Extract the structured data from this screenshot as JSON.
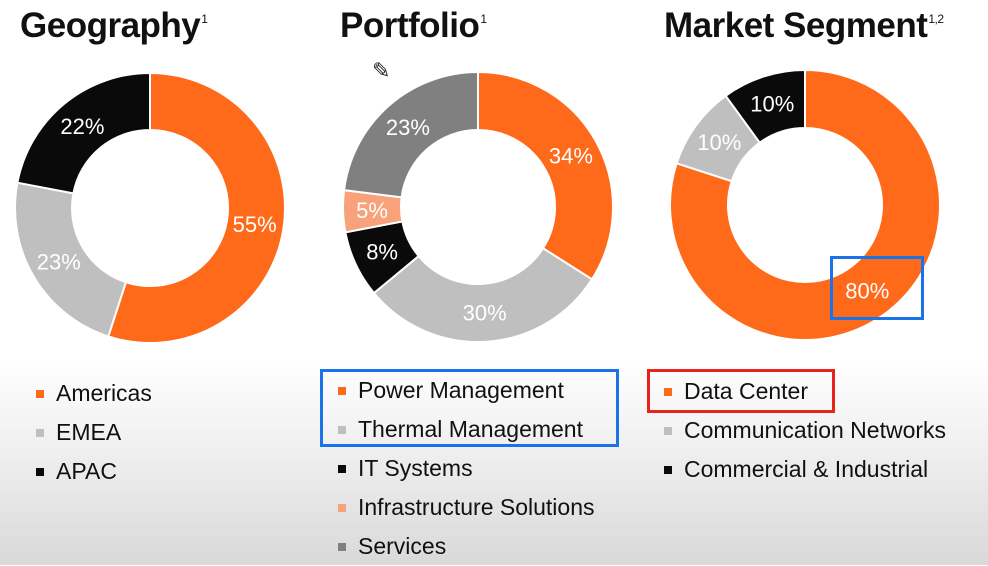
{
  "chart_data": [
    {
      "type": "pie",
      "title": "Geography",
      "title_sup": "1",
      "categories": [
        "Americas",
        "EMEA",
        "APAC"
      ],
      "values": [
        55,
        23,
        22
      ],
      "labels": [
        "55%",
        "23%",
        "22%"
      ],
      "colors": [
        "#ff6a1a",
        "#bfbfbf",
        "#0a0a0a"
      ],
      "label_colors": [
        "#ffffff",
        "#ffffff",
        "#ffffff"
      ],
      "legend_placement": "bottom"
    },
    {
      "type": "pie",
      "title": "Portfolio",
      "title_sup": "1",
      "categories": [
        "Power Management",
        "Thermal Management",
        "IT Systems",
        "Infrastructure Solutions",
        "Services"
      ],
      "values": [
        34,
        30,
        8,
        5,
        23
      ],
      "labels": [
        "34%",
        "30%",
        "8%",
        "5%",
        "23%"
      ],
      "colors": [
        "#ff6a1a",
        "#bfbfbf",
        "#0a0a0a",
        "#f7a27a",
        "#808080"
      ],
      "label_colors": [
        "#ffffff",
        "#ffffff",
        "#ffffff",
        "#ffffff",
        "#ffffff"
      ],
      "legend_placement": "bottom"
    },
    {
      "type": "pie",
      "title": "Market Segment",
      "title_sup": "1,2",
      "categories": [
        "Data Center",
        "Communication Networks",
        "Commercial & Industrial"
      ],
      "values": [
        80,
        10,
        10
      ],
      "labels": [
        "80%",
        "10%",
        "10%"
      ],
      "colors": [
        "#ff6a1a",
        "#bfbfbf",
        "#0a0a0a"
      ],
      "label_colors": [
        "#ffffff",
        "#ffffff",
        "#ffffff"
      ],
      "legend_placement": "bottom"
    }
  ],
  "highlight_colors": {
    "blue": "#1a73e8",
    "red": "#e8231a"
  },
  "icons": {
    "cursor": "pencil-cursor-icon"
  }
}
